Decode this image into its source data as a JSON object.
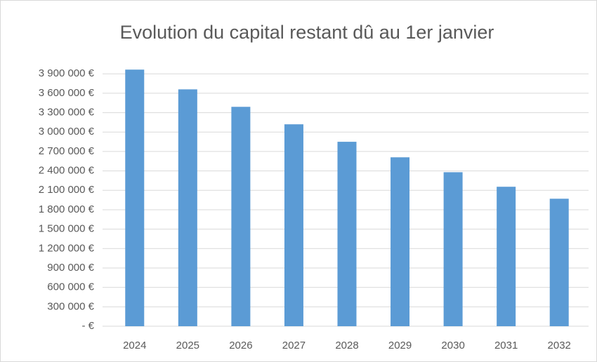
{
  "chart_data": {
    "type": "bar",
    "title": "Evolution du capital restant dû au 1er janvier",
    "categories": [
      "2024",
      "2025",
      "2026",
      "2027",
      "2028",
      "2029",
      "2030",
      "2031",
      "2032"
    ],
    "values": [
      3965000,
      3660000,
      3390000,
      3120000,
      2850000,
      2610000,
      2380000,
      2155000,
      1970000
    ],
    "color": "#5b9bd5",
    "ylim": [
      0,
      4000000
    ],
    "yticks": [
      {
        "value": 0,
        "label": "- €"
      },
      {
        "value": 300000,
        "label": "300 000 €"
      },
      {
        "value": 600000,
        "label": "600 000 €"
      },
      {
        "value": 900000,
        "label": "900 000 €"
      },
      {
        "value": 1200000,
        "label": "1 200 000 €"
      },
      {
        "value": 1500000,
        "label": "1 500 000 €"
      },
      {
        "value": 1800000,
        "label": "1 800 000 €"
      },
      {
        "value": 2100000,
        "label": "2 100 000 €"
      },
      {
        "value": 2400000,
        "label": "2 400 000 €"
      },
      {
        "value": 2700000,
        "label": "2 700 000 €"
      },
      {
        "value": 3000000,
        "label": "3 000 000 €"
      },
      {
        "value": 3300000,
        "label": "3 300 000 €"
      },
      {
        "value": 3600000,
        "label": "3 600 000 €"
      },
      {
        "value": 3900000,
        "label": "3 900 000 €"
      }
    ],
    "grid": true
  }
}
